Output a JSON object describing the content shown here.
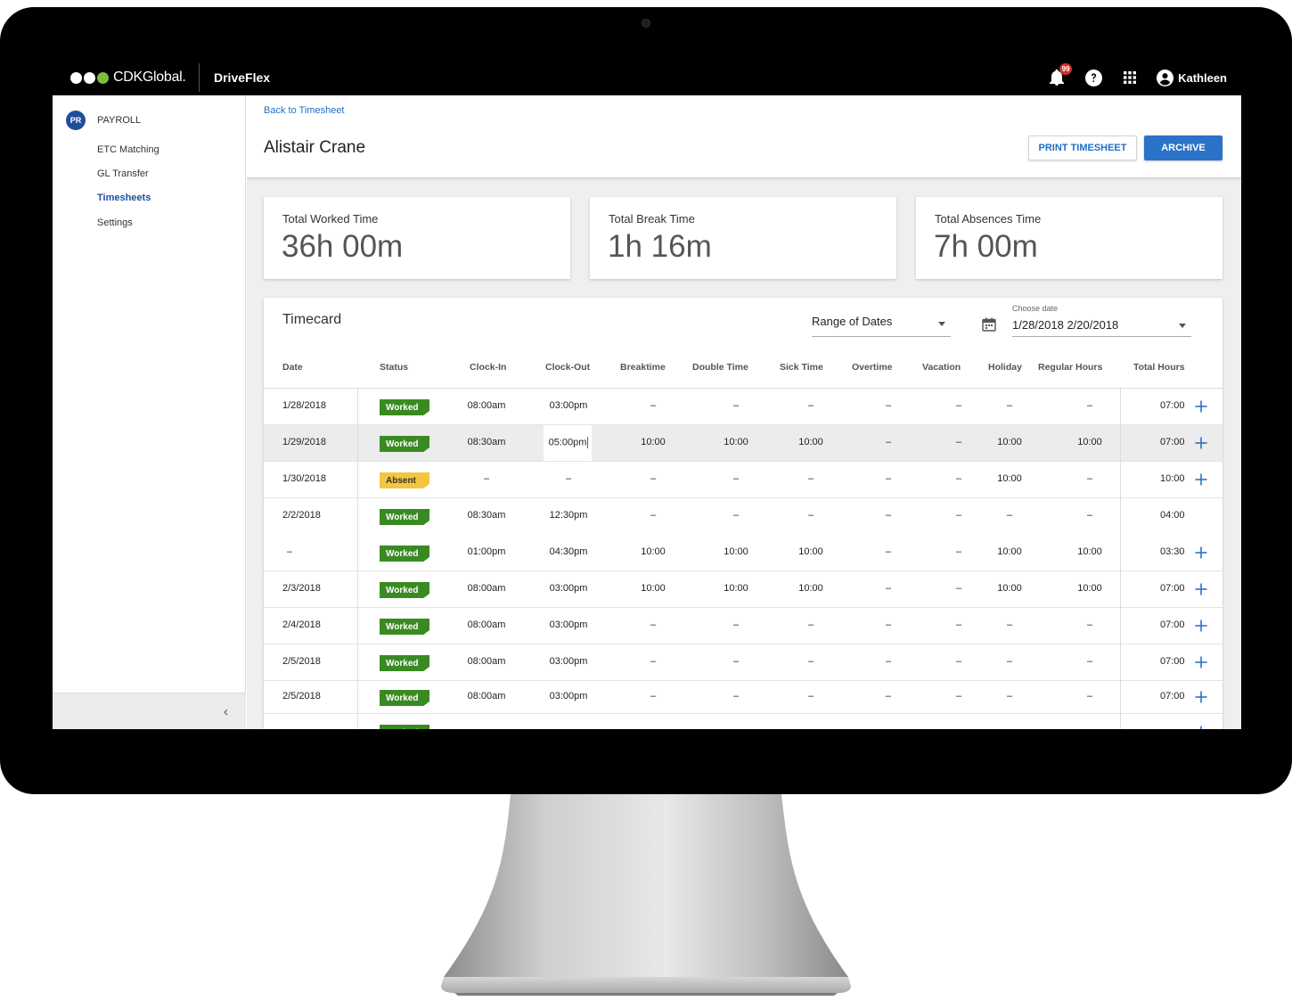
{
  "topbar": {
    "brand": "CDKGlobal.",
    "app_name": "DriveFlex",
    "notification_count": "99",
    "user_name": "Kathleen"
  },
  "sidebar": {
    "avatar": "PR",
    "title": "PAYROLL",
    "items": [
      {
        "label": "ETC Matching",
        "active": false
      },
      {
        "label": "GL Transfer",
        "active": false
      },
      {
        "label": "Timesheets",
        "active": true
      },
      {
        "label": "Settings",
        "active": false
      }
    ],
    "collapse_glyph": "‹"
  },
  "header": {
    "back_link": "Back to Timesheet",
    "title": "Alistair Crane",
    "print_button": "PRINT TIMESHEET",
    "archive_button": "ARCHIVE"
  },
  "stats": [
    {
      "label": "Total Worked Time",
      "value": "36h 00m"
    },
    {
      "label": "Total Break Time",
      "value": "1h 16m"
    },
    {
      "label": "Total Absences Time",
      "value": "7h 00m"
    }
  ],
  "timecard": {
    "title": "Timecard",
    "range_select": "Range of Dates",
    "date_label": "Choose date",
    "date_value": "1/28/2018 2/20/2018",
    "columns": [
      "Date",
      "Status",
      "Clock-In",
      "Clock-Out",
      "Breaktime",
      "Double Time",
      "Sick Time",
      "Overtime",
      "Vacation",
      "Holiday",
      "Regular Hours",
      "Total Hours"
    ],
    "rows": [
      {
        "date": "1/28/2018",
        "status": "Worked",
        "clock_in": "08:00am",
        "clock_out": "03:00pm",
        "breaktime": "–",
        "double_time": "–",
        "sick_time": "–",
        "overtime": "–",
        "vacation": "–",
        "holiday": "–",
        "regular_hours": "–",
        "total": "07:00",
        "plus": true
      },
      {
        "date": "1/29/2018",
        "status": "Worked",
        "clock_in": "08:30am",
        "clock_out": "05:00pm",
        "breaktime": "10:00",
        "double_time": "10:00",
        "sick_time": "10:00",
        "overtime": "–",
        "vacation": "–",
        "holiday": "10:00",
        "regular_hours": "10:00",
        "total": "07:00",
        "plus": true
      },
      {
        "date": "1/30/2018",
        "status": "Absent",
        "clock_in": "–",
        "clock_out": "–",
        "breaktime": "–",
        "double_time": "–",
        "sick_time": "–",
        "overtime": "–",
        "vacation": "–",
        "holiday": "10:00",
        "regular_hours": "–",
        "total": "10:00",
        "plus": true
      },
      {
        "date": "2/2/2018",
        "status": "Worked",
        "clock_in": "08:30am",
        "clock_out": "12:30pm",
        "breaktime": "–",
        "double_time": "–",
        "sick_time": "–",
        "overtime": "–",
        "vacation": "–",
        "holiday": "–",
        "regular_hours": "–",
        "total": "04:00",
        "plus": false
      },
      {
        "date": "–",
        "status": "Worked",
        "clock_in": "01:00pm",
        "clock_out": "04:30pm",
        "breaktime": "10:00",
        "double_time": "10:00",
        "sick_time": "10:00",
        "overtime": "–",
        "vacation": "–",
        "holiday": "10:00",
        "regular_hours": "10:00",
        "total": "03:30",
        "plus": true
      },
      {
        "date": "2/3/2018",
        "status": "Worked",
        "clock_in": "08:00am",
        "clock_out": "03:00pm",
        "breaktime": "10:00",
        "double_time": "10:00",
        "sick_time": "10:00",
        "overtime": "–",
        "vacation": "–",
        "holiday": "10:00",
        "regular_hours": "10:00",
        "total": "07:00",
        "plus": true
      },
      {
        "date": "2/4/2018",
        "status": "Worked",
        "clock_in": "08:00am",
        "clock_out": "03:00pm",
        "breaktime": "–",
        "double_time": "–",
        "sick_time": "–",
        "overtime": "–",
        "vacation": "–",
        "holiday": "–",
        "regular_hours": "–",
        "total": "07:00",
        "plus": true
      },
      {
        "date": "2/5/2018",
        "status": "Worked",
        "clock_in": "08:00am",
        "clock_out": "03:00pm",
        "breaktime": "–",
        "double_time": "–",
        "sick_time": "–",
        "overtime": "–",
        "vacation": "–",
        "holiday": "–",
        "regular_hours": "–",
        "total": "07:00",
        "plus": true
      },
      {
        "date": "2/5/2018",
        "status": "Worked",
        "clock_in": "08:00am",
        "clock_out": "03:00pm",
        "breaktime": "–",
        "double_time": "–",
        "sick_time": "–",
        "overtime": "–",
        "vacation": "–",
        "holiday": "–",
        "regular_hours": "–",
        "total": "07:00",
        "plus": true
      },
      {
        "date": "",
        "status": "Worked",
        "clock_in": "",
        "clock_out": "",
        "breaktime": "",
        "double_time": "",
        "sick_time": "",
        "overtime": "",
        "vacation": "",
        "holiday": "",
        "regular_hours": "",
        "total": "",
        "plus": true
      }
    ]
  },
  "colors": {
    "accent": "#2a73c9",
    "worked": "#3a8a22",
    "absent": "#f3c640",
    "badge": "#d32f2f"
  },
  "icons": [
    "bell-icon",
    "help-icon",
    "apps-grid-icon",
    "account-icon",
    "calendar-icon",
    "plus-icon",
    "chevron-left-icon"
  ]
}
